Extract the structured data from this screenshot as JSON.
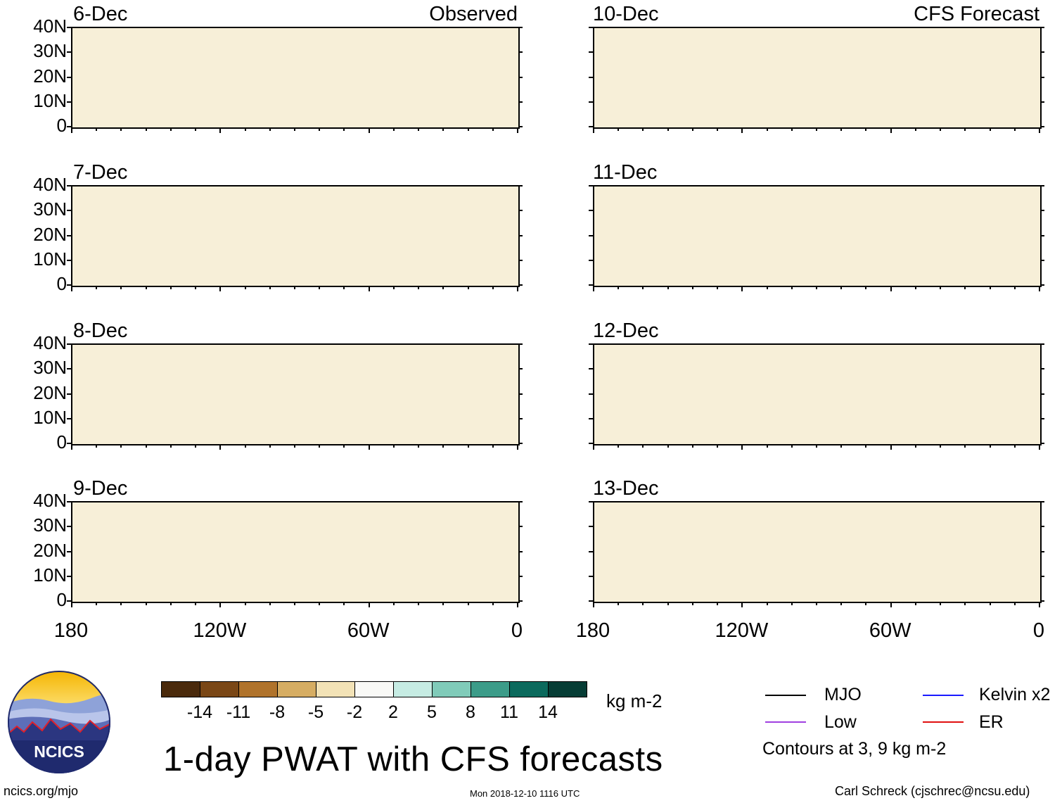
{
  "left_column": {
    "corner_label": "Observed",
    "panels": [
      {
        "date": "6-Dec"
      },
      {
        "date": "7-Dec"
      },
      {
        "date": "8-Dec"
      },
      {
        "date": "9-Dec"
      }
    ]
  },
  "right_column": {
    "corner_label": "CFS Forecast",
    "panels": [
      {
        "date": "10-Dec"
      },
      {
        "date": "11-Dec"
      },
      {
        "date": "12-Dec"
      },
      {
        "date": "13-Dec"
      }
    ]
  },
  "lat_labels": [
    "40N",
    "30N",
    "20N",
    "10N",
    "0"
  ],
  "lon_labels": [
    "180",
    "120W",
    "60W",
    "0"
  ],
  "colorbar": {
    "colors": [
      "#4a2a0c",
      "#7a4716",
      "#b0732b",
      "#d6ad63",
      "#f2e2b6",
      "#f9f9f6",
      "#c6ece3",
      "#80cbb9",
      "#3c9c89",
      "#0b6a5d",
      "#063d35"
    ],
    "labels": [
      "-14",
      "-11",
      "-8",
      "-5",
      "-2",
      "2",
      "5",
      "8",
      "11",
      "14"
    ],
    "units": "kg m-2"
  },
  "title": "1-day PWAT with CFS forecasts",
  "legend": {
    "items": [
      {
        "label": "MJO",
        "color": "#000000"
      },
      {
        "label": "Kelvin x2",
        "color": "#1a1aff"
      },
      {
        "label": "Low",
        "color": "#a040e0"
      },
      {
        "label": "ER",
        "color": "#e01010"
      }
    ],
    "note": "Contours at 3, 9 kg m-2"
  },
  "logo": {
    "text": "NCICS"
  },
  "footer": {
    "left": "ncics.org/mjo",
    "center": "Mon 2018-12-10 1116 UTC",
    "right": "Carl Schreck (cjschrec@ncsu.edu)"
  }
}
